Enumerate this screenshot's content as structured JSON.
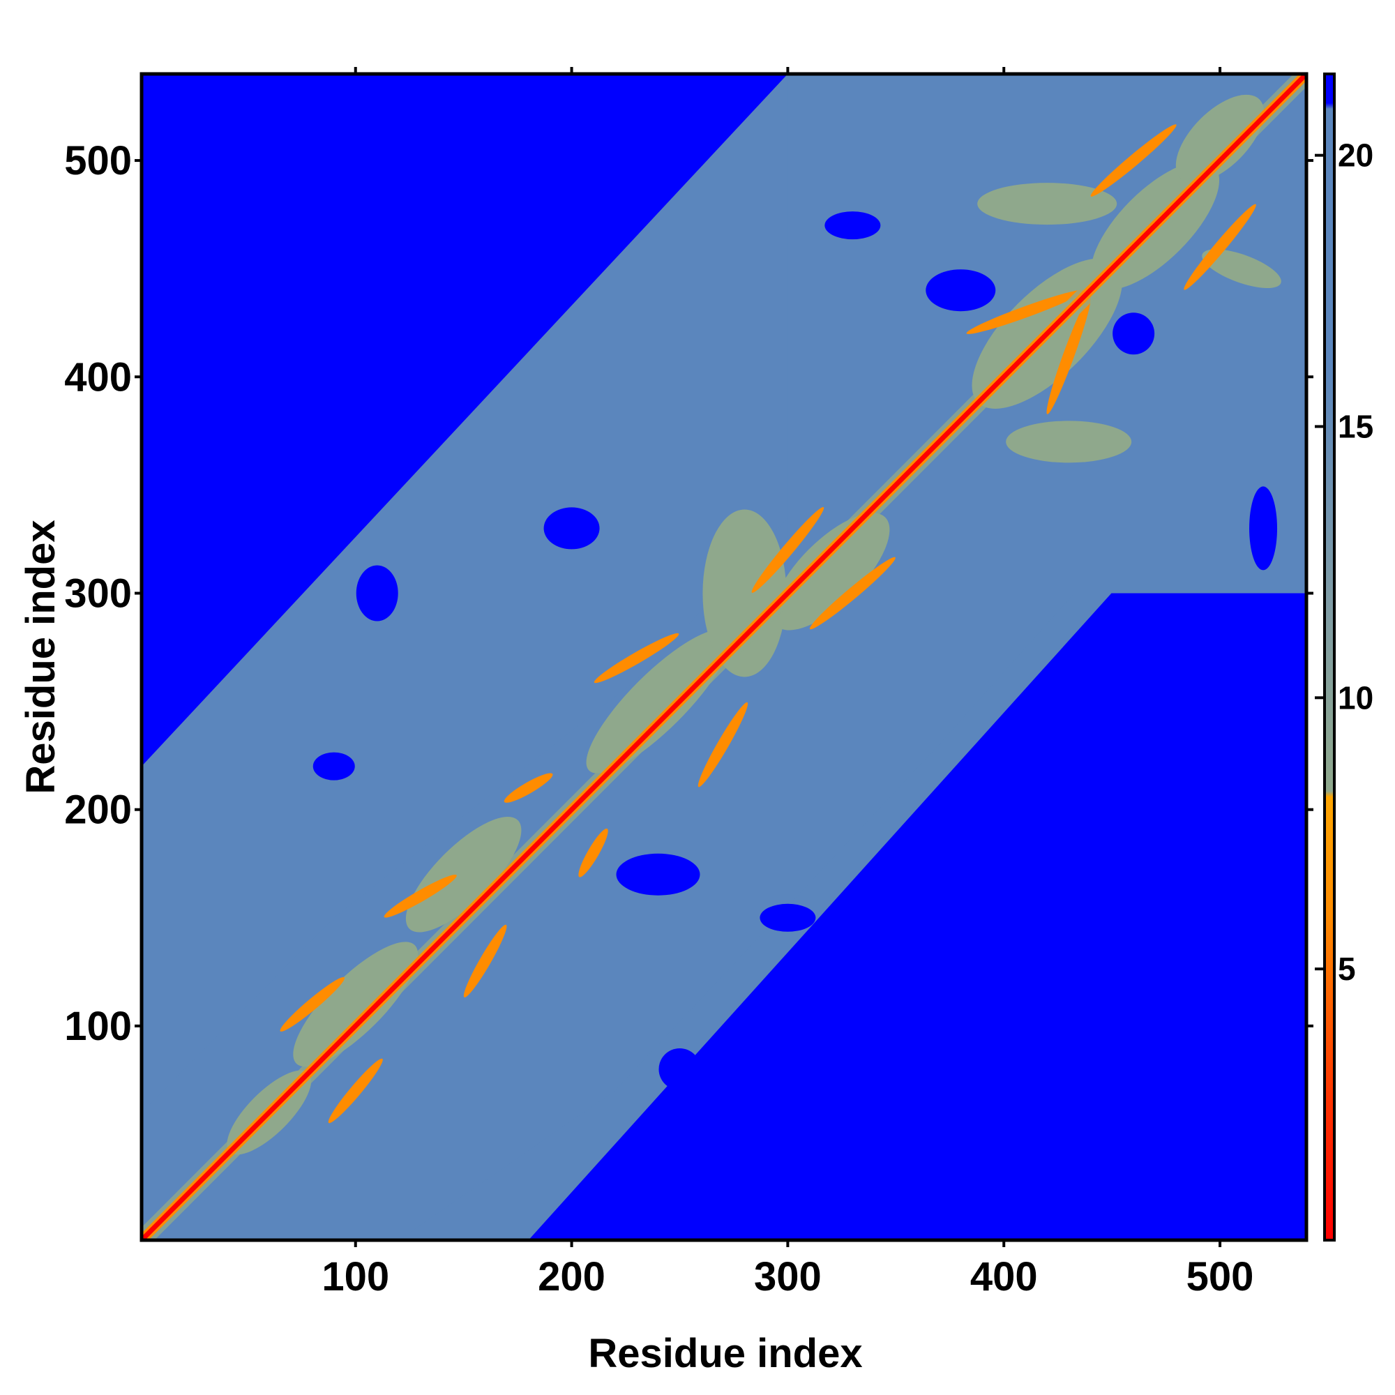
{
  "chart_data": {
    "type": "heatmap",
    "title": "",
    "xlabel": "Residue index",
    "ylabel": "Residue index",
    "xlim": [
      1,
      540
    ],
    "ylim": [
      1,
      540
    ],
    "x_ticks": [
      100,
      200,
      300,
      400,
      500
    ],
    "y_ticks": [
      100,
      200,
      300,
      400,
      500
    ],
    "colorbar": {
      "range": [
        0,
        21.5
      ],
      "ticks": [
        5,
        10,
        15,
        20
      ],
      "colors": {
        "near": "#ff0000",
        "mid_low": "#ff8c00",
        "mid": "#8fa88c",
        "far": "#5b86bd",
        "max": "#0000ff"
      }
    },
    "description_values": {
      "diagonal_distance": 3.8,
      "background_distance": 21
    }
  }
}
